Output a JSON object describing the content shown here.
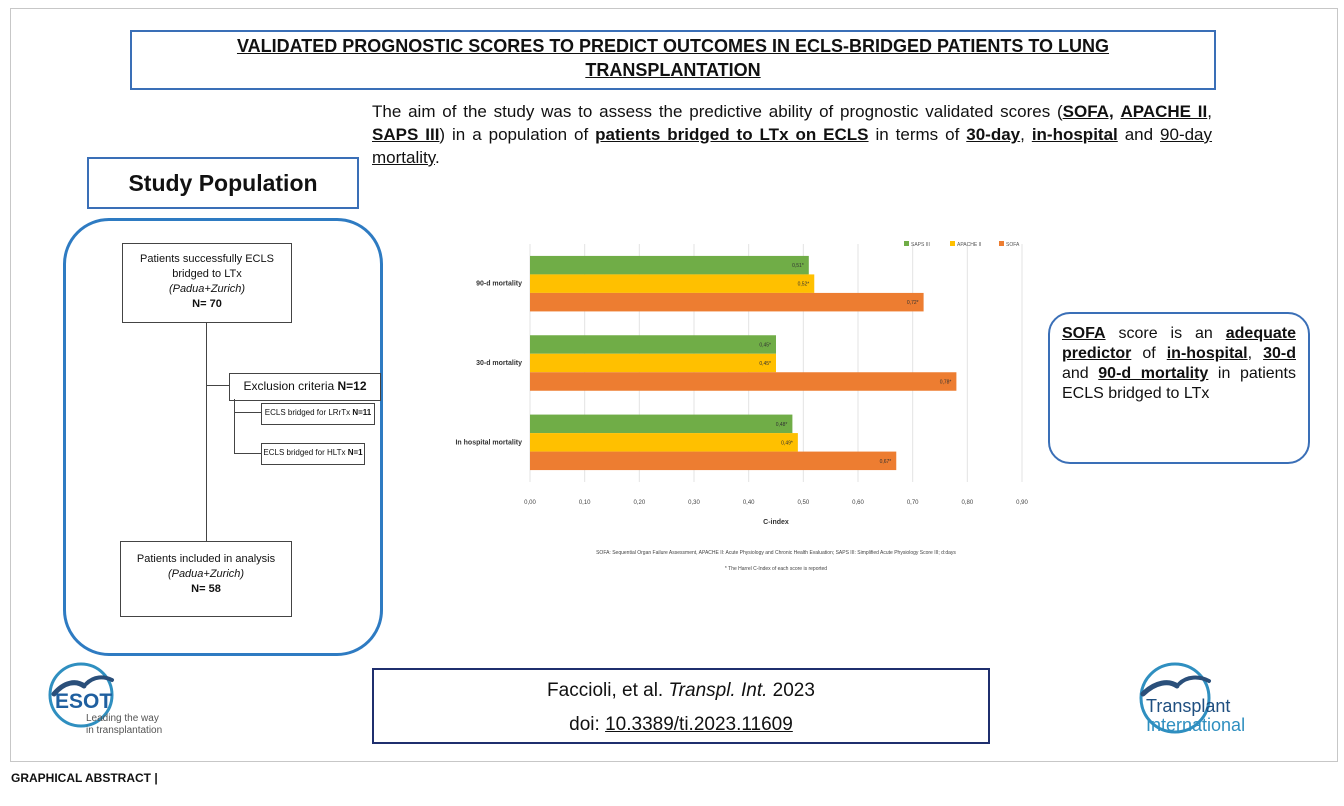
{
  "title": {
    "line1": "VALIDATED PROGNOSTIC SCORES TO PREDICT OUTCOMES IN ECLS-BRIDGED PATIENTS TO LUNG",
    "line2": "TRANSPLANTATION"
  },
  "aim": {
    "t1": "The aim of the study was to assess the predictive ability of prognostic validated scores (",
    "sofa": "SOFA,",
    "apache": "APACHE II",
    "comma": ",",
    "saps": "SAPS III",
    "t2": ") in a population of ",
    "patients": "patients bridged to LTx on ECLS",
    "t3": " in terms of ",
    "d30": "30-day",
    "comma2": ", ",
    "inhospital": "in-hospital",
    "and": " and ",
    "d90": "90-day mortality",
    "dot": "."
  },
  "study_population": "Study Population",
  "flow": {
    "box1_line1": "Patients successfully ECLS",
    "box1_line2": "bridged to LTx",
    "box1_line3": "(Padua+Zurich)",
    "box1_n": "N= 70",
    "excl_label": "Exclusion criteria ",
    "excl_n": "N=12",
    "lrrtx_label": "ECLS bridged for LRrTx ",
    "lrrtx_n": "N=11",
    "hltx_label": "ECLS bridged for HLTx ",
    "hltx_n": "N=1",
    "box2_line1": "Patients included in analysis",
    "box2_line2": "(Padua+Zurich)",
    "box2_n": "N= 58"
  },
  "chart_data": {
    "type": "bar",
    "orientation": "horizontal",
    "categories": [
      "90-d mortality",
      "30-d mortality",
      "In hospital mortality"
    ],
    "series": [
      {
        "name": "SAPS III",
        "color": "#70ad47",
        "values": [
          0.51,
          0.45,
          0.48
        ],
        "labels": [
          "0,51*",
          "0,45*",
          "0,48*"
        ]
      },
      {
        "name": "APACHE II",
        "color": "#ffc000",
        "values": [
          0.52,
          0.45,
          0.49
        ],
        "labels": [
          "0,52*",
          "0,45*",
          "0,49*"
        ]
      },
      {
        "name": "SOFA",
        "color": "#ed7d31",
        "values": [
          0.72,
          0.78,
          0.67
        ],
        "labels": [
          "0,72*",
          "0,78*",
          "0,67*"
        ]
      }
    ],
    "xlim": [
      0,
      0.9
    ],
    "xticks": [
      "0,00",
      "0,10",
      "0,20",
      "0,30",
      "0,40",
      "0,50",
      "0,60",
      "0,70",
      "0,80",
      "0,90"
    ],
    "xlabel": "C-index",
    "legend_position": "top-right",
    "grid": true,
    "footnote1": "SOFA: Sequential Organ Failure Assessment, APACHE II: Acute Physiology and Chronic Health Evaluation; SAPS III: Simplified Acute Physiology Score III; d:days",
    "footnote2": "* The Harrel C-Index of each score is reported"
  },
  "conclusion": {
    "sofa": "SOFA",
    "t1": " score is an ",
    "adequate": "adequate predictor",
    "t2": " of ",
    "inhospital": "in-hospital",
    "c1": ", ",
    "d30": "30-d",
    "and": " and ",
    "d90": "90-d mortality",
    "t3": " in patients ECLS bridged to LTx"
  },
  "citation": {
    "authors": "Faccioli, et al. ",
    "journal": "Transpl. Int.",
    "year": " 2023",
    "doi_label": "doi: ",
    "doi": "10.3389/ti.2023.11609"
  },
  "esot_logo": {
    "name": "ESOT",
    "tagline1": "Leading the way",
    "tagline2": "in transplantation"
  },
  "ti_logo": {
    "line1": "Transplant",
    "line2": "International"
  },
  "footer": "GRAPHICAL ABSTRACT |",
  "colors": {
    "box_blue": "#3a6fb7",
    "cite_navy": "#1f2f6e",
    "logo_blue": "#2f8fc0"
  }
}
